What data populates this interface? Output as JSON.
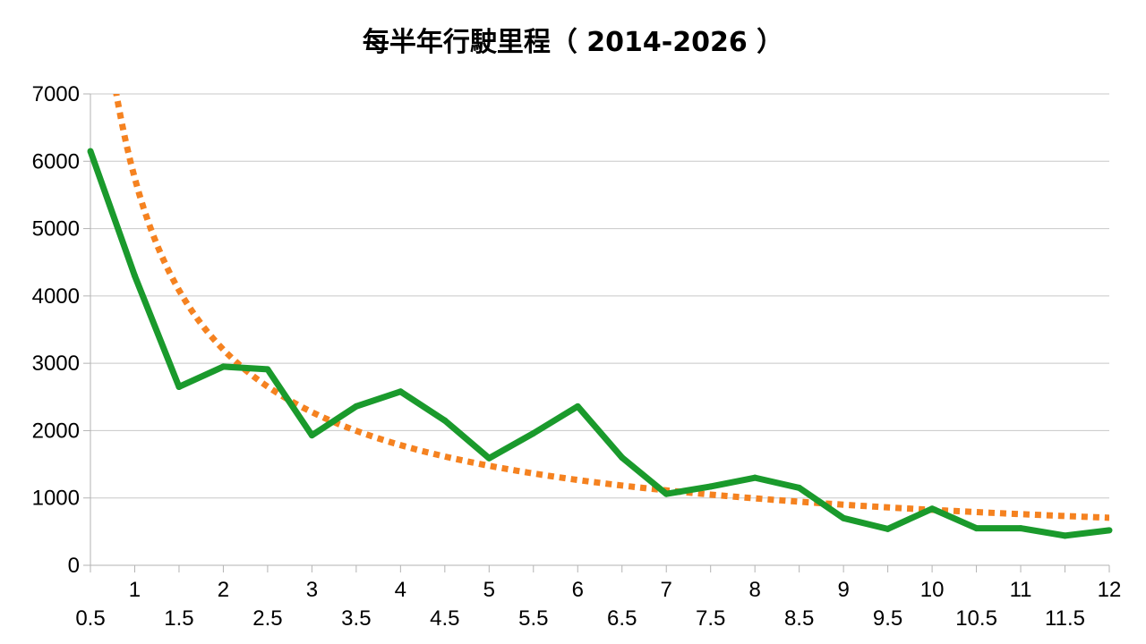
{
  "chart_data": {
    "type": "line",
    "title": "每半年行駛里程（ 2014-2026 ）",
    "xlabel": "",
    "ylabel": "",
    "x": [
      0.5,
      1,
      1.5,
      2,
      2.5,
      3,
      3.5,
      4,
      4.5,
      5,
      5.5,
      6,
      6.5,
      7,
      7.5,
      8,
      8.5,
      9,
      9.5,
      10,
      10.5,
      11,
      11.5,
      12
    ],
    "x_tick_labels_upper": [
      "1",
      "2",
      "3",
      "4",
      "5",
      "6",
      "7",
      "8",
      "9",
      "10",
      "11",
      "12"
    ],
    "x_tick_labels_lower": [
      "0.5",
      "1.5",
      "2.5",
      "3.5",
      "4.5",
      "5.5",
      "6.5",
      "7.5",
      "8.5",
      "9.5",
      "10.5",
      "11.5"
    ],
    "y_ticks": [
      "0",
      "1000",
      "2000",
      "3000",
      "4000",
      "5000",
      "6000",
      "7000"
    ],
    "ylim": [
      0,
      7000
    ],
    "xlim": [
      0.5,
      12
    ],
    "grid": "horizontal",
    "series": [
      {
        "values": [
          6150,
          4300,
          2650,
          2950,
          2910,
          1930,
          2360,
          2580,
          2150,
          1590,
          1960,
          2360,
          1600,
          1060,
          1170,
          1300,
          1150,
          700,
          540,
          840,
          550,
          550,
          440,
          520
        ],
        "color": "#1a9a2c",
        "style": "solid"
      },
      {
        "trendline": "power",
        "formula_coeff": 5750,
        "formula_exp": -0.844,
        "color": "#f58220",
        "style": "dotted"
      }
    ]
  }
}
